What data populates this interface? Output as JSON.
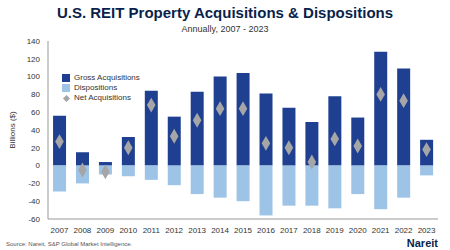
{
  "chart_data": {
    "type": "bar",
    "title": "U.S. REIT Property Acquisitions & Dispositions",
    "subtitle": "Annually, 2007 - 2023",
    "y_label": "Billions ($)",
    "source": "Source: Nareit, S&P Global Market Intelligence.",
    "logo": "Nareit",
    "categories": [
      "2007",
      "2008",
      "2009",
      "2010",
      "2011",
      "2012",
      "2013",
      "2014",
      "2015",
      "2016",
      "2017",
      "2018",
      "2019",
      "2020",
      "2021",
      "2022",
      "2023"
    ],
    "series": [
      {
        "name": "Gross Acquisitions",
        "type": "bar",
        "color": "#1f3f91",
        "values": [
          56,
          15,
          4,
          32,
          84,
          55,
          83,
          100,
          104,
          81,
          65,
          49,
          78,
          54,
          128,
          109,
          29
        ]
      },
      {
        "name": "Dispositions",
        "type": "bar",
        "color": "#9dc3e6",
        "values": [
          -29,
          -20,
          -10,
          -12,
          -16,
          -22,
          -32,
          -36,
          -40,
          -56,
          -45,
          -45,
          -48,
          -32,
          -49,
          -36,
          -11
        ]
      },
      {
        "name": "Net Acquisitions",
        "type": "scatter",
        "color": "#a6a6a6",
        "marker": "diamond",
        "values": [
          27,
          -5,
          -7,
          20,
          68,
          33,
          51,
          64,
          64,
          25,
          20,
          4,
          30,
          22,
          80,
          73,
          18
        ]
      }
    ],
    "stacked": true,
    "ylim": [
      -60,
      140
    ],
    "yticks": [
      -60,
      -40,
      -20,
      0,
      20,
      40,
      60,
      80,
      100,
      120,
      140
    ],
    "grid": false,
    "legend": "upper left"
  }
}
